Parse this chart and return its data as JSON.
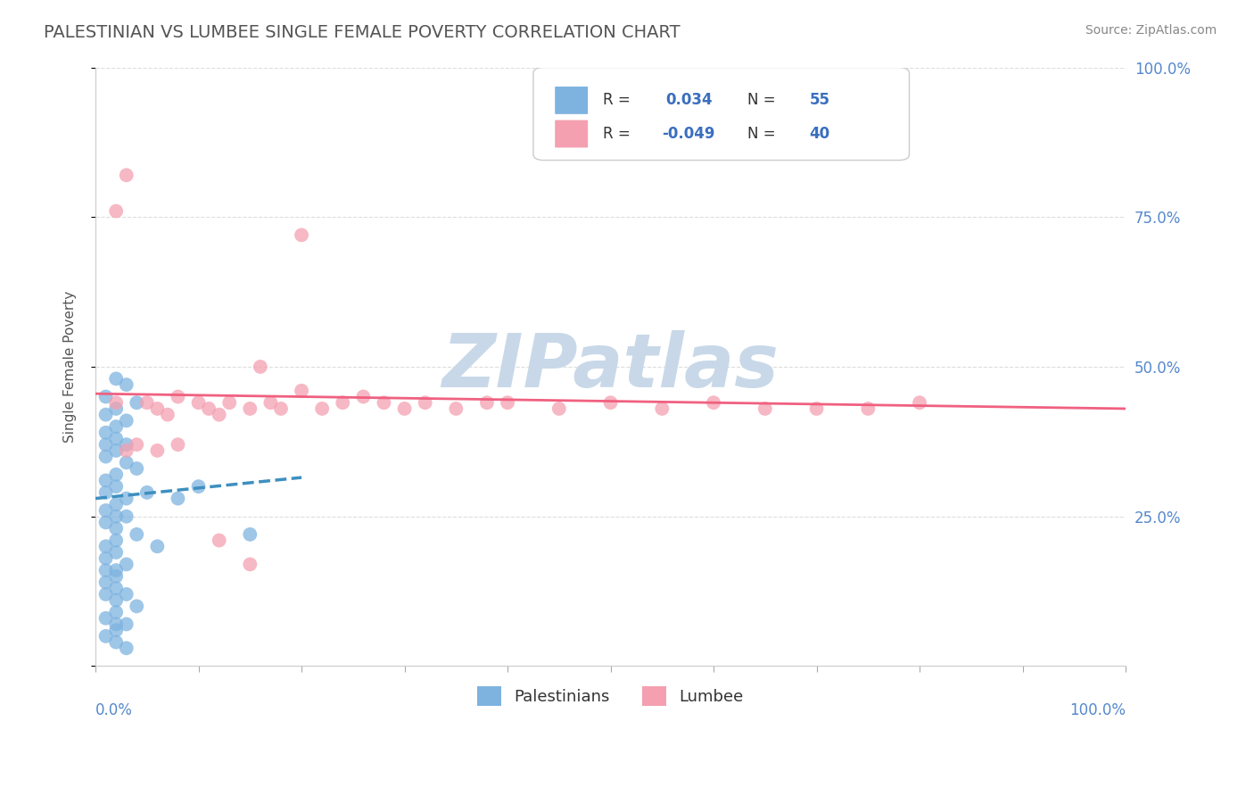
{
  "title": "PALESTINIAN VS LUMBEE SINGLE FEMALE POVERTY CORRELATION CHART",
  "source": "Source: ZipAtlas.com",
  "ylabel": "Single Female Poverty",
  "xlim": [
    0,
    1
  ],
  "ylim": [
    0,
    1
  ],
  "ytick_positions": [
    0.0,
    0.25,
    0.5,
    0.75,
    1.0
  ],
  "yticklabels_right": [
    "",
    "25.0%",
    "50.0%",
    "75.0%",
    "100.0%"
  ],
  "r_palestinian": 0.034,
  "n_palestinian": 55,
  "r_lumbee": -0.049,
  "n_lumbee": 40,
  "blue_color": "#7EB3E0",
  "pink_color": "#F4A0B0",
  "blue_line_color": "#3E8FC0",
  "pink_line_color": "#F06080",
  "watermark_color": "#C8D8E8",
  "legend_r_color": "#3A6FBF",
  "grid_color": "#DDDDDD",
  "blue_scatter_x": [
    0.02,
    0.03,
    0.01,
    0.04,
    0.02,
    0.01,
    0.03,
    0.02,
    0.01,
    0.02,
    0.03,
    0.01,
    0.02,
    0.01,
    0.03,
    0.04,
    0.02,
    0.01,
    0.02,
    0.01,
    0.05,
    0.03,
    0.02,
    0.01,
    0.02,
    0.03,
    0.01,
    0.02,
    0.04,
    0.02,
    0.06,
    0.01,
    0.02,
    0.01,
    0.03,
    0.02,
    0.01,
    0.02,
    0.01,
    0.02,
    0.03,
    0.01,
    0.02,
    0.15,
    0.04,
    0.02,
    0.01,
    0.02,
    0.03,
    0.02,
    0.01,
    0.1,
    0.08,
    0.02,
    0.03
  ],
  "blue_scatter_y": [
    0.48,
    0.47,
    0.45,
    0.44,
    0.43,
    0.42,
    0.41,
    0.4,
    0.39,
    0.38,
    0.37,
    0.37,
    0.36,
    0.35,
    0.34,
    0.33,
    0.32,
    0.31,
    0.3,
    0.29,
    0.29,
    0.28,
    0.27,
    0.26,
    0.25,
    0.25,
    0.24,
    0.23,
    0.22,
    0.21,
    0.2,
    0.2,
    0.19,
    0.18,
    0.17,
    0.16,
    0.16,
    0.15,
    0.14,
    0.13,
    0.12,
    0.12,
    0.11,
    0.22,
    0.1,
    0.09,
    0.08,
    0.07,
    0.07,
    0.06,
    0.05,
    0.3,
    0.28,
    0.04,
    0.03
  ],
  "pink_scatter_x": [
    0.02,
    0.03,
    0.2,
    0.05,
    0.06,
    0.07,
    0.08,
    0.1,
    0.11,
    0.12,
    0.13,
    0.15,
    0.16,
    0.17,
    0.18,
    0.2,
    0.22,
    0.24,
    0.26,
    0.28,
    0.3,
    0.32,
    0.35,
    0.38,
    0.4,
    0.45,
    0.5,
    0.55,
    0.6,
    0.65,
    0.7,
    0.75,
    0.8,
    0.03,
    0.04,
    0.06,
    0.08,
    0.12,
    0.15,
    0.02
  ],
  "pink_scatter_y": [
    0.44,
    0.82,
    0.72,
    0.44,
    0.43,
    0.42,
    0.45,
    0.44,
    0.43,
    0.42,
    0.44,
    0.43,
    0.5,
    0.44,
    0.43,
    0.46,
    0.43,
    0.44,
    0.45,
    0.44,
    0.43,
    0.44,
    0.43,
    0.44,
    0.44,
    0.43,
    0.44,
    0.43,
    0.44,
    0.43,
    0.43,
    0.43,
    0.44,
    0.36,
    0.37,
    0.36,
    0.37,
    0.21,
    0.17,
    0.76
  ],
  "blue_trend_x": [
    0.0,
    0.2
  ],
  "blue_trend_y": [
    0.28,
    0.315
  ],
  "pink_trend_x": [
    0.0,
    1.0
  ],
  "pink_trend_y": [
    0.455,
    0.43
  ]
}
